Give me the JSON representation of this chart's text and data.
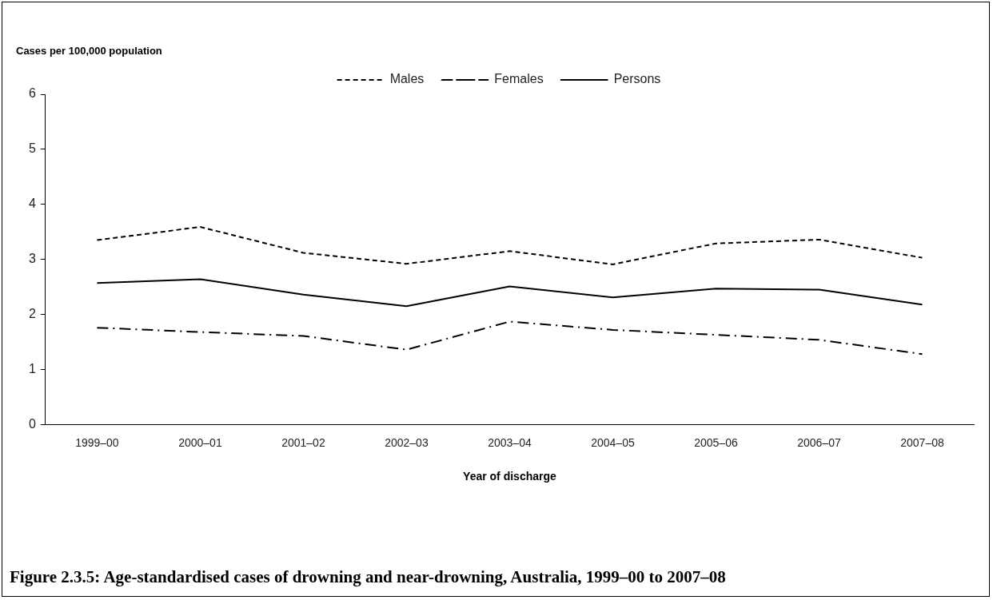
{
  "chart_data": {
    "type": "line",
    "title": "Figure 2.3.5: Age-standardised cases of drowning and near-drowning, Australia, 1999–00 to 2007–08",
    "xlabel": "Year of discharge",
    "ylabel": "Cases per 100,000 population",
    "categories": [
      "1999–00",
      "2000–01",
      "2001–02",
      "2002–03",
      "2003–04",
      "2004–05",
      "2005–06",
      "2006–07",
      "2007–08"
    ],
    "series": [
      {
        "name": "Males",
        "color": "#000000",
        "line_style": "dashed",
        "values": [
          3.35,
          3.59,
          3.12,
          2.92,
          3.15,
          2.91,
          3.29,
          3.36,
          3.03
        ]
      },
      {
        "name": "Females",
        "color": "#000000",
        "line_style": "dashdot",
        "values": [
          1.76,
          1.68,
          1.61,
          1.36,
          1.87,
          1.72,
          1.63,
          1.54,
          1.28
        ]
      },
      {
        "name": "Persons",
        "color": "#000000",
        "line_style": "solid",
        "values": [
          2.57,
          2.64,
          2.36,
          2.15,
          2.51,
          2.31,
          2.47,
          2.45,
          2.18
        ]
      }
    ],
    "ylim": [
      0,
      6
    ],
    "yticks": [
      0,
      1,
      2,
      3,
      4,
      5,
      6
    ],
    "grid": false,
    "legend": "top",
    "marker": "none"
  }
}
